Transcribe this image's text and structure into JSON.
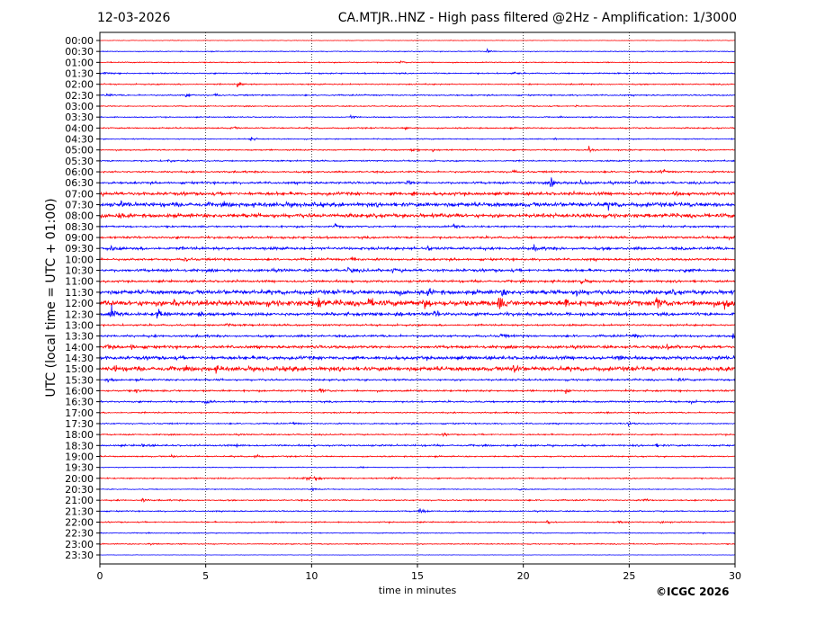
{
  "header": {
    "date": "12-03-2026",
    "title": "CA.MTJR..HNZ - High pass filtered @2Hz - Amplification: 1/3000"
  },
  "footer": {
    "credit": "©ICGC 2026"
  },
  "chart_data": {
    "type": "line",
    "title": "CA.MTJR..HNZ - High pass filtered @2Hz - Amplification: 1/3000",
    "xlabel": "time in minutes",
    "ylabel": "UTC (local time = UTC + 01:00)",
    "xlim": [
      0,
      30
    ],
    "xticks": [
      "0",
      "5",
      "10",
      "15",
      "20",
      "25",
      "30"
    ],
    "grid": "vertical dotted at 5-minute intervals",
    "colors": {
      "hour": "#ff0000",
      "half_hour": "#0000ff"
    },
    "rows": [
      {
        "label": "00:00",
        "noise": 0.05,
        "events": []
      },
      {
        "label": "00:30",
        "noise": 0.08,
        "events": [
          [
            18.3,
            0.6
          ]
        ]
      },
      {
        "label": "01:00",
        "noise": 0.1,
        "events": [
          [
            14.2,
            0.3
          ]
        ]
      },
      {
        "label": "01:30",
        "noise": 0.13,
        "events": [
          [
            19.5,
            0.35
          ],
          [
            0.2,
            0.3
          ]
        ]
      },
      {
        "label": "02:00",
        "noise": 0.12,
        "events": [
          [
            6.5,
            0.9
          ]
        ]
      },
      {
        "label": "02:30",
        "noise": 0.13,
        "events": [
          [
            0.3,
            0.4
          ],
          [
            4,
            0.7
          ],
          [
            5.4,
            0.3
          ]
        ]
      },
      {
        "label": "03:00",
        "noise": 0.1,
        "events": [
          [
            22.5,
            0.3
          ]
        ]
      },
      {
        "label": "03:30",
        "noise": 0.1,
        "events": [
          [
            11.8,
            0.5
          ]
        ]
      },
      {
        "label": "04:00",
        "noise": 0.13,
        "events": [
          [
            6.2,
            0.4
          ],
          [
            14.4,
            0.3
          ]
        ]
      },
      {
        "label": "04:30",
        "noise": 0.1,
        "events": [
          [
            7.1,
            0.6
          ],
          [
            21.5,
            0.3
          ]
        ]
      },
      {
        "label": "05:00",
        "noise": 0.13,
        "events": [
          [
            23.1,
            0.7
          ],
          [
            15.7,
            0.4
          ],
          [
            14.7,
            0.3
          ]
        ]
      },
      {
        "label": "05:30",
        "noise": 0.13,
        "events": [
          [
            3.2,
            0.5
          ]
        ]
      },
      {
        "label": "06:00",
        "noise": 0.17,
        "events": [
          [
            26.5,
            0.6
          ],
          [
            19.5,
            0.3
          ]
        ]
      },
      {
        "label": "06:30",
        "noise": 0.22,
        "events": [
          [
            21.3,
            1.2
          ],
          [
            22.7,
            0.6
          ],
          [
            14.5,
            0.5
          ],
          [
            25.3,
            0.4
          ]
        ]
      },
      {
        "label": "07:00",
        "noise": 0.32,
        "events": [
          [
            14.7,
            0.5
          ],
          [
            27.2,
            0.5
          ]
        ]
      },
      {
        "label": "07:30",
        "noise": 0.42,
        "events": [
          [
            24,
            0.6
          ],
          [
            1,
            0.5
          ]
        ]
      },
      {
        "label": "08:00",
        "noise": 0.38,
        "events": [
          [
            0.8,
            0.7
          ],
          [
            16.8,
            0.4
          ]
        ]
      },
      {
        "label": "08:30",
        "noise": 0.18,
        "events": [
          [
            16.7,
            0.7
          ],
          [
            11.1,
            0.5
          ],
          [
            25.5,
            0.4
          ]
        ]
      },
      {
        "label": "09:00",
        "noise": 0.22,
        "events": [
          [
            29.5,
            0.5
          ]
        ]
      },
      {
        "label": "09:30",
        "noise": 0.28,
        "events": [
          [
            15.5,
            0.6
          ],
          [
            20.5,
            0.5
          ],
          [
            0.5,
            0.4
          ]
        ]
      },
      {
        "label": "10:00",
        "noise": 0.22,
        "events": [
          [
            11.9,
            0.6
          ],
          [
            4,
            0.5
          ]
        ]
      },
      {
        "label": "10:30",
        "noise": 0.27,
        "events": [
          [
            11.7,
            0.6
          ],
          [
            27.6,
            0.5
          ],
          [
            13.8,
            0.4
          ]
        ]
      },
      {
        "label": "11:00",
        "noise": 0.22,
        "events": [
          [
            22.7,
            0.6
          ]
        ]
      },
      {
        "label": "11:30",
        "noise": 0.42,
        "events": [
          [
            15.5,
            0.8
          ],
          [
            19,
            0.7
          ],
          [
            22.5,
            0.7
          ],
          [
            14,
            0.6
          ],
          [
            27,
            0.5
          ]
        ]
      },
      {
        "label": "12:00",
        "noise": 0.55,
        "events": [
          [
            3.5,
            1.3
          ],
          [
            10.3,
            1.5
          ],
          [
            15.3,
            1.2
          ],
          [
            18.8,
            1.4
          ],
          [
            22,
            1.0
          ],
          [
            26.3,
            1.3
          ],
          [
            29.5,
            1.5
          ],
          [
            12.7,
            0.9
          ]
        ]
      },
      {
        "label": "12:30",
        "noise": 0.32,
        "events": [
          [
            0.5,
            2.0
          ],
          [
            2.7,
            1.8
          ],
          [
            4.7,
            1.2
          ],
          [
            14,
            1.0
          ],
          [
            15.8,
            0.8
          ]
        ]
      },
      {
        "label": "13:00",
        "noise": 0.18,
        "events": [
          [
            6,
            0.4
          ]
        ]
      },
      {
        "label": "13:30",
        "noise": 0.22,
        "events": [
          [
            18.9,
            0.6
          ],
          [
            25.2,
            0.5
          ],
          [
            29.9,
            0.5
          ]
        ]
      },
      {
        "label": "14:00",
        "noise": 0.28,
        "events": [
          [
            0.3,
            0.8
          ],
          [
            1.5,
            0.6
          ],
          [
            26.8,
            0.6
          ]
        ]
      },
      {
        "label": "14:30",
        "noise": 0.35,
        "events": [
          [
            24.5,
            0.5
          ],
          [
            7.8,
            0.4
          ]
        ]
      },
      {
        "label": "15:00",
        "noise": 0.42,
        "events": [
          [
            19.5,
            1.2
          ],
          [
            0.7,
            0.6
          ],
          [
            5.5,
            0.6
          ],
          [
            9,
            0.5
          ]
        ]
      },
      {
        "label": "15:30",
        "noise": 0.18,
        "events": [
          [
            0.4,
            0.7
          ],
          [
            27.3,
            0.4
          ]
        ]
      },
      {
        "label": "16:00",
        "noise": 0.18,
        "events": [
          [
            1.7,
            0.6
          ],
          [
            22,
            0.5
          ],
          [
            10.4,
            0.5
          ]
        ]
      },
      {
        "label": "16:30",
        "noise": 0.17,
        "events": [
          [
            5,
            0.6
          ],
          [
            27.8,
            0.4
          ]
        ]
      },
      {
        "label": "17:00",
        "noise": 0.13,
        "events": [
          [
            24,
            0.3
          ]
        ]
      },
      {
        "label": "17:30",
        "noise": 0.13,
        "events": [
          [
            24.9,
            0.5
          ],
          [
            9.1,
            0.3
          ]
        ]
      },
      {
        "label": "18:00",
        "noise": 0.13,
        "events": [
          [
            16.2,
            0.3
          ]
        ]
      },
      {
        "label": "18:30",
        "noise": 0.17,
        "events": [
          [
            2,
            0.6
          ],
          [
            6.5,
            0.5
          ],
          [
            26.3,
            0.4
          ]
        ]
      },
      {
        "label": "19:00",
        "noise": 0.13,
        "events": [
          [
            7.3,
            0.5
          ],
          [
            3.4,
            0.4
          ]
        ]
      },
      {
        "label": "19:30",
        "noise": 0.08,
        "events": [
          [
            12.3,
            0.3
          ]
        ]
      },
      {
        "label": "20:00",
        "noise": 0.13,
        "events": [
          [
            9.6,
            0.7
          ],
          [
            10.1,
            0.8
          ],
          [
            13.8,
            0.4
          ]
        ]
      },
      {
        "label": "20:30",
        "noise": 0.08,
        "events": [
          [
            10,
            0.4
          ],
          [
            19.8,
            0.3
          ]
        ]
      },
      {
        "label": "21:00",
        "noise": 0.13,
        "events": [
          [
            2,
            0.4
          ],
          [
            25.7,
            0.3
          ]
        ]
      },
      {
        "label": "21:30",
        "noise": 0.12,
        "events": [
          [
            15.1,
            0.7
          ]
        ]
      },
      {
        "label": "22:00",
        "noise": 0.12,
        "events": [
          [
            21.1,
            0.6
          ],
          [
            24.5,
            0.5
          ],
          [
            26.5,
            0.4
          ]
        ]
      },
      {
        "label": "22:30",
        "noise": 0.08,
        "events": [
          [
            28.2,
            0.3
          ]
        ]
      },
      {
        "label": "23:00",
        "noise": 0.1,
        "events": [
          [
            2.3,
            0.5
          ]
        ]
      },
      {
        "label": "23:30",
        "noise": 0.04,
        "events": []
      }
    ]
  }
}
